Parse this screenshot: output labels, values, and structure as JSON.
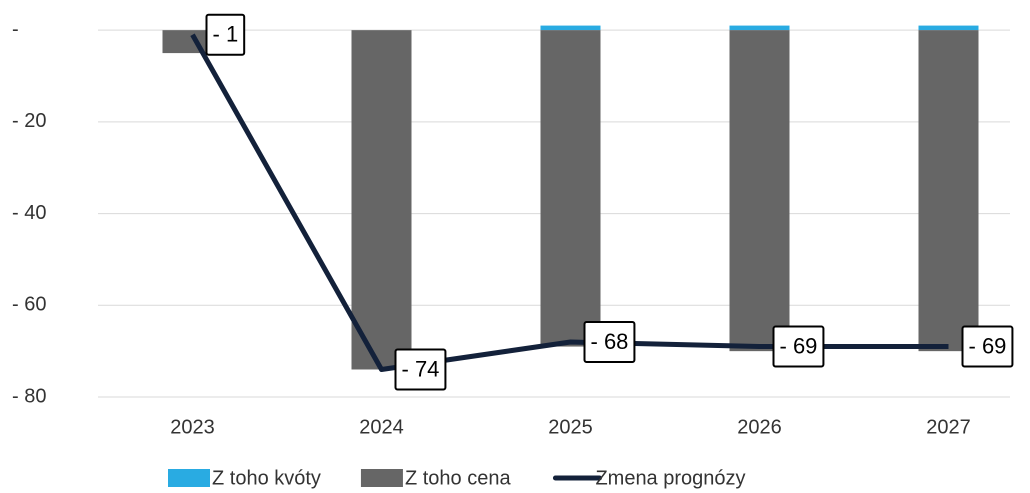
{
  "chart_data": {
    "type": "bar",
    "categories": [
      "2023",
      "2024",
      "2025",
      "2026",
      "2027"
    ],
    "series": [
      {
        "name": "Z toho kvóty",
        "color": "#29abe2",
        "values": [
          0,
          0,
          1,
          1,
          1
        ]
      },
      {
        "name": "Z toho cena",
        "color": "#666666",
        "values": [
          -5,
          -74,
          -69,
          -70,
          -70
        ]
      },
      {
        "name": "Zmena prognózy",
        "type": "line",
        "color": "#13213a",
        "values": [
          -1,
          -74,
          -68,
          -69,
          -69
        ],
        "value_labels": [
          "- 1",
          "- 74",
          "- 68",
          "- 69",
          "- 69"
        ]
      }
    ],
    "ylim": [
      -80,
      2
    ],
    "yticks": [
      {
        "value": 0,
        "label": "-"
      },
      {
        "value": -20,
        "label": "- 20"
      },
      {
        "value": -40,
        "label": "- 40"
      },
      {
        "value": -60,
        "label": "- 60"
      },
      {
        "value": -80,
        "label": "- 80"
      }
    ],
    "grid": true,
    "legend": "bottom"
  }
}
